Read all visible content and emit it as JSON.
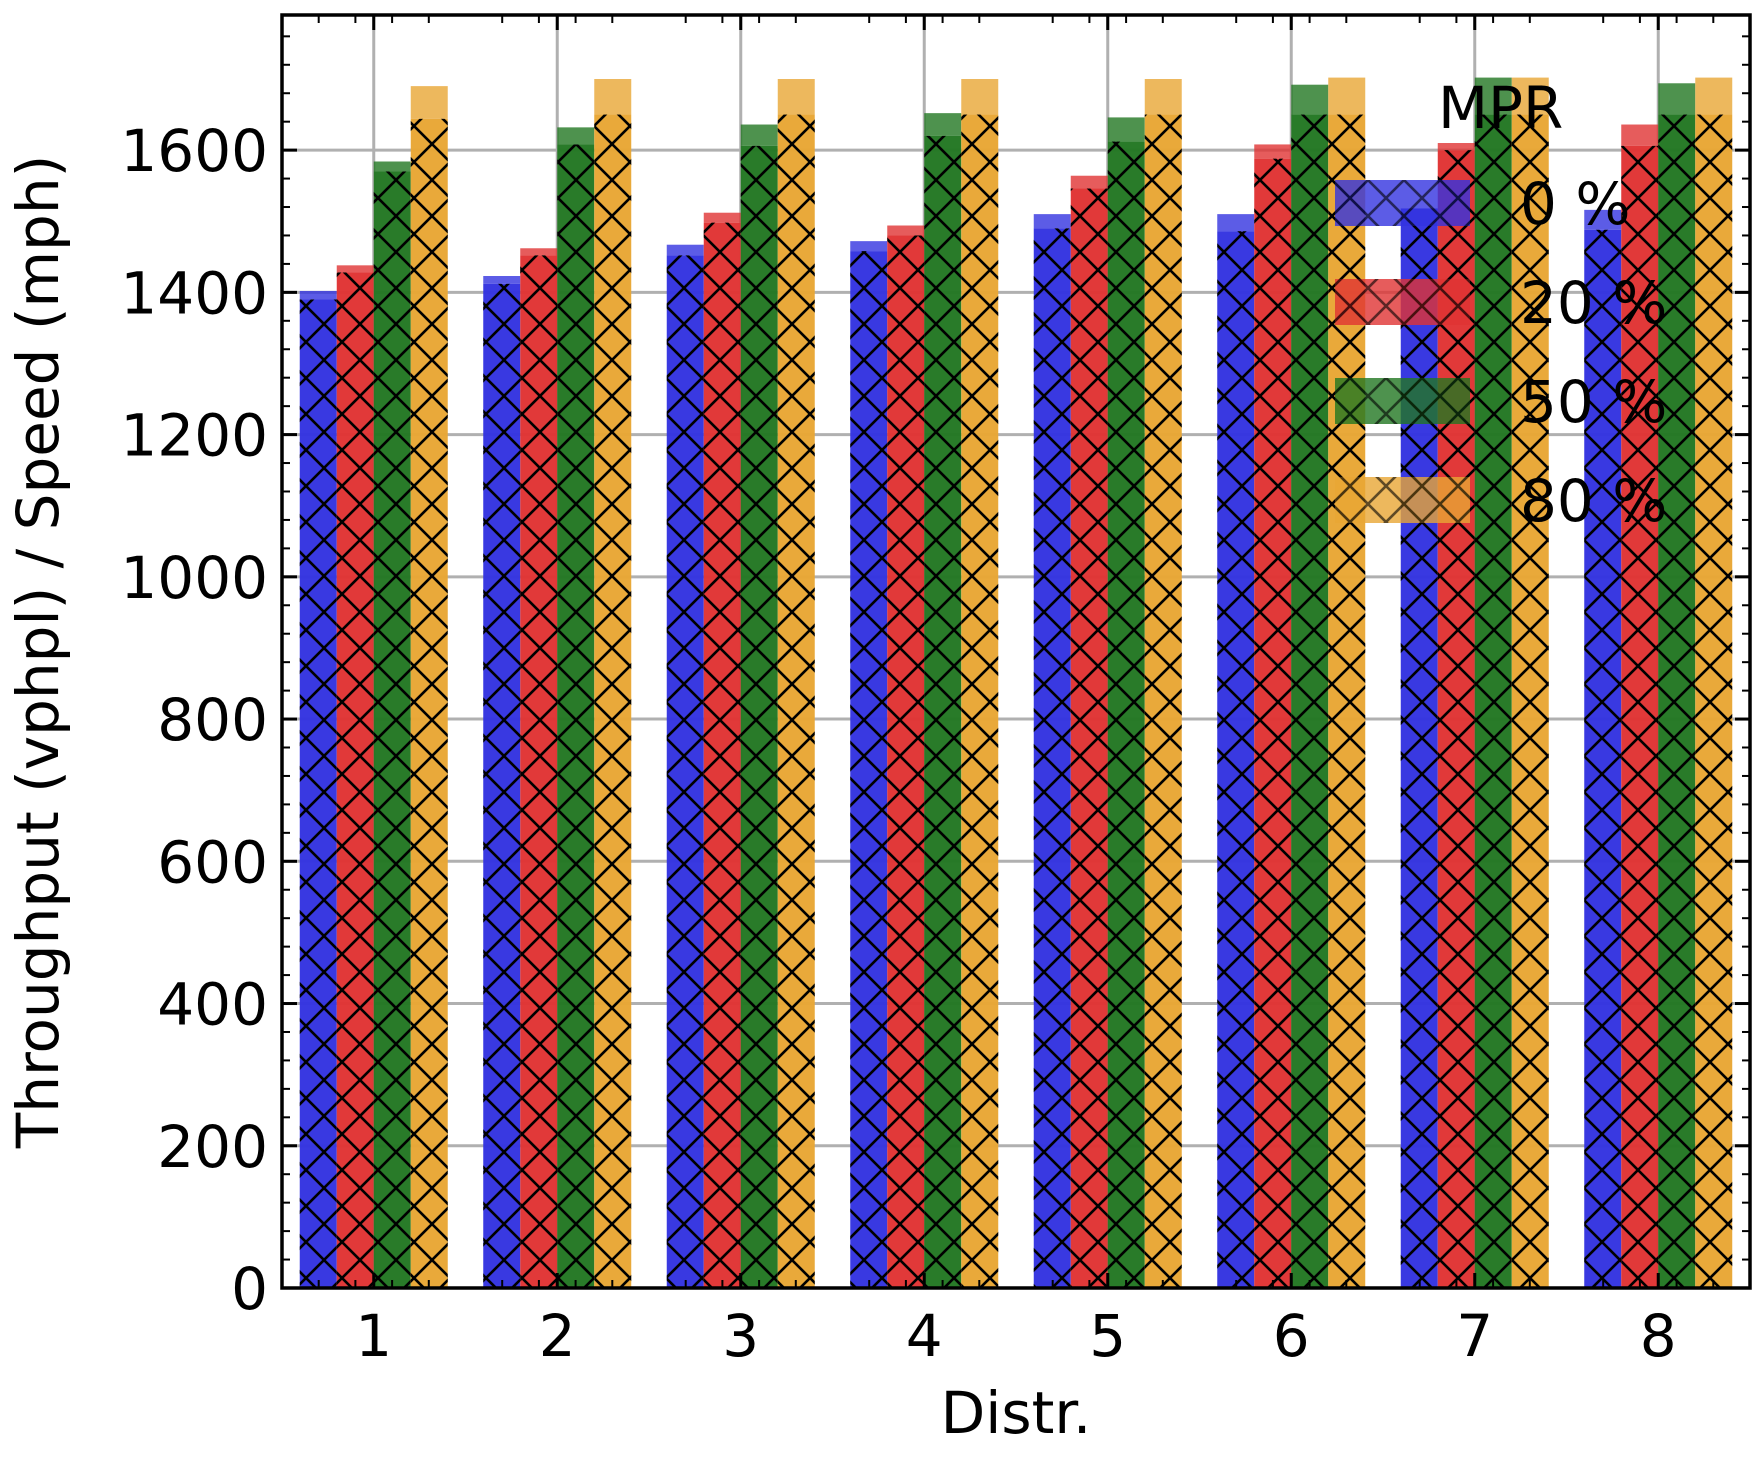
{
  "chart_data": {
    "type": "bar",
    "title": "",
    "xlabel": "Distr.",
    "ylabel": "Throughput (vphpl) / Speed (mph)",
    "categories": [
      "1",
      "2",
      "3",
      "4",
      "5",
      "6",
      "7",
      "8"
    ],
    "ylim": [
      0,
      1790
    ],
    "yticks": [
      0,
      200,
      400,
      600,
      800,
      1000,
      1200,
      1400,
      1600
    ],
    "grid": true,
    "legend": {
      "title": "MPR",
      "placement": "top-right"
    },
    "bar_style": "crosshatched throughput bar with a lighter speed bar stacked on top",
    "series": [
      {
        "name": "0 %",
        "color": "#3333e0",
        "throughput": [
          1390,
          1412,
          1452,
          1458,
          1490,
          1486,
          1518,
          1488
        ],
        "speed_increment": [
          12,
          11,
          15,
          14,
          20,
          24,
          0,
          28
        ]
      },
      {
        "name": "20 %",
        "color": "#e03333",
        "throughput": [
          1428,
          1452,
          1498,
          1480,
          1546,
          1588,
          1600,
          1606
        ],
        "speed_increment": [
          10,
          10,
          14,
          14,
          18,
          20,
          10,
          30
        ]
      },
      {
        "name": "50 %",
        "color": "#227722",
        "throughput": [
          1570,
          1608,
          1606,
          1620,
          1612,
          1650,
          1650,
          1650
        ],
        "speed_increment": [
          14,
          24,
          30,
          32,
          34,
          42,
          52,
          44
        ]
      },
      {
        "name": "80 %",
        "color": "#e8a634",
        "throughput": [
          1644,
          1650,
          1650,
          1650,
          1650,
          1650,
          1650,
          1650
        ],
        "speed_increment": [
          46,
          50,
          50,
          50,
          50,
          52,
          52,
          52
        ]
      }
    ]
  }
}
